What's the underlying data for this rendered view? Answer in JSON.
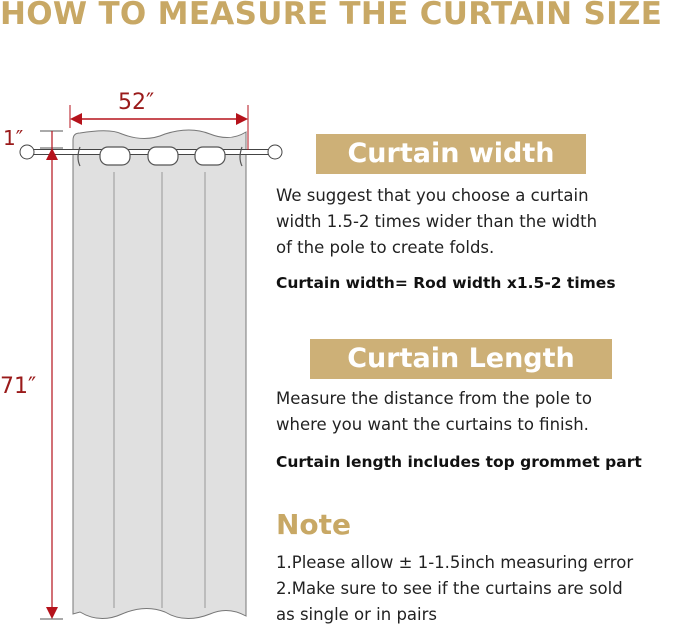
{
  "title": "HOW TO MEASURE THE CURTAIN SIZE",
  "diagram": {
    "width_label": "52″",
    "grommet_label": "1″",
    "length_label": "71″",
    "arrow_color": "#b5121b",
    "curtain_color": "#e0e0e0"
  },
  "width_section": {
    "heading": "Curtain width",
    "lines": [
      "We suggest that you choose a curtain",
      "width 1.5-2 times wider than the width",
      "of the pole to create folds."
    ],
    "formula": "Curtain width= Rod width x1.5-2 times"
  },
  "length_section": {
    "heading": "Curtain Length",
    "lines": [
      "Measure the distance from the pole to",
      "where you want the curtains to finish."
    ],
    "formula": "Curtain length includes top grommet part"
  },
  "note": {
    "heading": "Note",
    "lines": [
      "1.Please allow ± 1-1.5inch measuring error",
      "2.Make sure to see if the curtains are sold",
      "as single or in pairs"
    ]
  },
  "colors": {
    "gold": "#c8a865",
    "banner": "#cdb077"
  }
}
